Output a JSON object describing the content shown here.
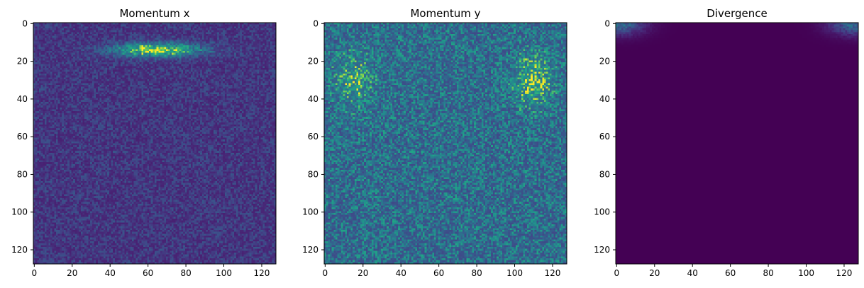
{
  "chart_data": [
    {
      "type": "heatmap",
      "title": "Momentum x",
      "xlabel": "",
      "ylabel": "",
      "grid_size": [
        128,
        128
      ],
      "xlim": [
        0,
        127
      ],
      "ylim": [
        127,
        0
      ],
      "x_ticks": [
        0,
        20,
        40,
        60,
        80,
        100,
        120
      ],
      "y_ticks": [
        0,
        20,
        40,
        60,
        80,
        100,
        120
      ],
      "colormap": "viridis",
      "pattern": {
        "background_level": 0.12,
        "noise_amplitude": 0.22,
        "hotspots": [
          {
            "center_x": 65,
            "center_y": 14,
            "spread_x": 22,
            "spread_y": 3.5,
            "peak": 0.85
          }
        ]
      }
    },
    {
      "type": "heatmap",
      "title": "Momentum y",
      "xlabel": "",
      "ylabel": "",
      "grid_size": [
        128,
        128
      ],
      "xlim": [
        0,
        127
      ],
      "ylim": [
        127,
        0
      ],
      "x_ticks": [
        0,
        20,
        40,
        60,
        80,
        100,
        120
      ],
      "y_ticks": [
        0,
        20,
        40,
        60,
        80,
        100,
        120
      ],
      "colormap": "viridis",
      "pattern": {
        "background_level": 0.28,
        "noise_amplitude": 0.45,
        "hotspots": [
          {
            "center_x": 15,
            "center_y": 30,
            "spread_x": 10,
            "spread_y": 14,
            "peak": 0.25
          },
          {
            "center_x": 110,
            "center_y": 30,
            "spread_x": 10,
            "spread_y": 14,
            "peak": 0.3
          }
        ]
      }
    },
    {
      "type": "heatmap",
      "title": "Divergence",
      "xlabel": "",
      "ylabel": "",
      "grid_size": [
        128,
        128
      ],
      "xlim": [
        0,
        127
      ],
      "ylim": [
        127,
        0
      ],
      "x_ticks": [
        0,
        20,
        40,
        60,
        80,
        100,
        120
      ],
      "y_ticks": [
        0,
        20,
        40,
        60,
        80,
        100,
        120
      ],
      "colormap": "viridis",
      "pattern": {
        "background_level": 0.0,
        "noise_amplitude": 0.0,
        "hotspots": [
          {
            "center_x": 0,
            "center_y": 0,
            "spread_x": 14,
            "spread_y": 6,
            "peak": 0.6
          },
          {
            "center_x": 127,
            "center_y": 0,
            "spread_x": 14,
            "spread_y": 6,
            "peak": 0.6
          }
        ]
      }
    }
  ]
}
